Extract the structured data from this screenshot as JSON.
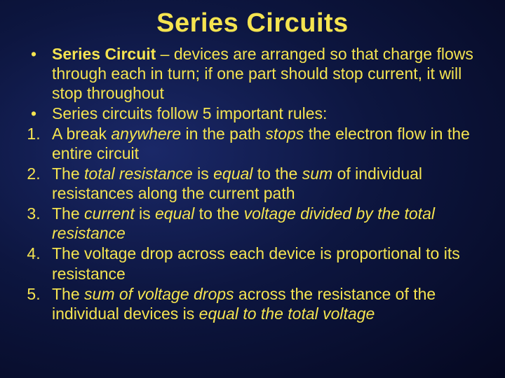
{
  "title": "Series Circuits",
  "colors": {
    "text": "#f5e450",
    "bg_center": "#1a2868",
    "bg_mid": "#0d1640",
    "bg_edge": "#050820"
  },
  "typography": {
    "title_fontsize": 38,
    "body_fontsize": 23,
    "title_family": "Arial Black",
    "body_family": "Arial"
  },
  "items": [
    {
      "marker": "•",
      "segments": [
        {
          "text": "Series Circuit",
          "bold": true
        },
        {
          "text": " – devices are arranged so that charge flows through each in turn; if one part should stop current, it will stop throughout"
        }
      ]
    },
    {
      "marker": "•",
      "segments": [
        {
          "text": "Series circuits follow 5 important rules:"
        }
      ]
    },
    {
      "marker": "1.",
      "segments": [
        {
          "text": "A break "
        },
        {
          "text": "anywhere",
          "italic": true
        },
        {
          "text": " in the path "
        },
        {
          "text": "stops",
          "italic": true
        },
        {
          "text": " the electron flow in the entire circuit"
        }
      ]
    },
    {
      "marker": "2.",
      "segments": [
        {
          "text": "The "
        },
        {
          "text": "total resistance",
          "italic": true
        },
        {
          "text": " is "
        },
        {
          "text": "equal",
          "italic": true
        },
        {
          "text": " to the "
        },
        {
          "text": "sum",
          "italic": true
        },
        {
          "text": " of individual resistances along the current path"
        }
      ]
    },
    {
      "marker": "3.",
      "segments": [
        {
          "text": "The "
        },
        {
          "text": "current",
          "italic": true
        },
        {
          "text": " is "
        },
        {
          "text": "equal",
          "italic": true
        },
        {
          "text": " to the "
        },
        {
          "text": "voltage divided by the total resistance",
          "italic": true
        }
      ]
    },
    {
      "marker": "4.",
      "segments": [
        {
          "text": "The voltage drop across each device is proportional to its resistance"
        }
      ]
    },
    {
      "marker": "5.",
      "segments": [
        {
          "text": "The "
        },
        {
          "text": "sum of voltage drops",
          "italic": true
        },
        {
          "text": " across the resistance of the individual devices is "
        },
        {
          "text": "equal to the total voltage",
          "italic": true
        }
      ]
    }
  ]
}
